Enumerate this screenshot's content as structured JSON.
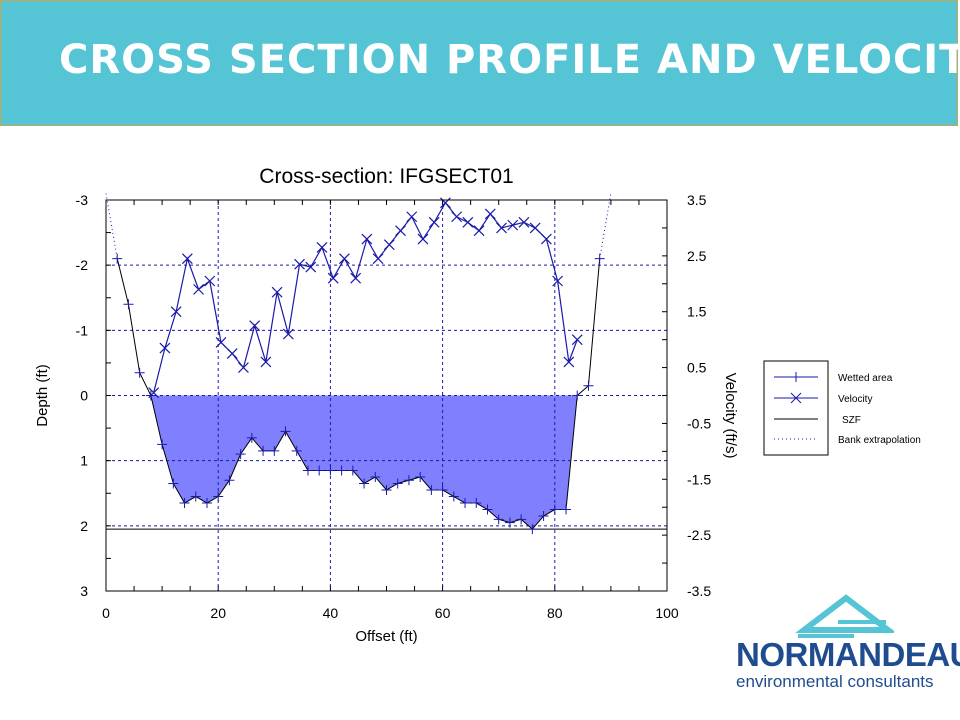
{
  "header": {
    "title": "CROSS SECTION PROFILE AND VELOCITY"
  },
  "logo": {
    "main": "NORMANDEAU",
    "sub": "environmental consultants"
  },
  "chart_data": {
    "type": "area",
    "title": "Cross-section: IFGSECT01",
    "xlabel": "Offset (ft)",
    "ylabel": "Depth (ft)",
    "y2label": "Velocity (ft/s)",
    "xlim": [
      0,
      100
    ],
    "ylim": [
      -3,
      3
    ],
    "y2lim": [
      -3.5,
      3.5
    ],
    "x_ticks": [
      "0",
      "20",
      "40",
      "60",
      "80",
      "100"
    ],
    "y_ticks": [
      "-3",
      "-2",
      "-1",
      "0",
      "1",
      "2",
      "3"
    ],
    "y2_ticks": [
      "3.5",
      "2.5",
      "1.5",
      "0.5",
      "-0.5",
      "-1.5",
      "-2.5",
      "-3.5"
    ],
    "szf_depth": 2.05,
    "legend": {
      "position": "right",
      "entries": [
        "Wetted area",
        "Velocity",
        "SZF",
        "Bank extrapolation"
      ]
    },
    "colors": {
      "wetted": "#8080ff",
      "series": "#1a1aaa",
      "grid": "#1a1aaa"
    },
    "bank_left": {
      "x": [
        0,
        2
      ],
      "depth": [
        -3.1,
        -2.1
      ]
    },
    "bank_right": {
      "x": [
        88,
        90
      ],
      "depth": [
        -2.1,
        -3.1
      ]
    },
    "profile": {
      "x": [
        2,
        4,
        6,
        8,
        10,
        12,
        14,
        16,
        18,
        20,
        22,
        24,
        26,
        28,
        30,
        32,
        34,
        36,
        38,
        40,
        42,
        44,
        46,
        48,
        50,
        52,
        54,
        56,
        58,
        60,
        62,
        64,
        66,
        68,
        70,
        72,
        74,
        76,
        78,
        80,
        82,
        84,
        86,
        88
      ],
      "depth": [
        -2.1,
        -1.4,
        -0.35,
        0,
        0.75,
        1.35,
        1.65,
        1.55,
        1.65,
        1.55,
        1.3,
        0.9,
        0.65,
        0.85,
        0.85,
        0.55,
        0.85,
        1.15,
        1.15,
        1.15,
        1.15,
        1.15,
        1.35,
        1.25,
        1.45,
        1.35,
        1.3,
        1.25,
        1.45,
        1.45,
        1.55,
        1.65,
        1.65,
        1.75,
        1.9,
        1.95,
        1.9,
        2.05,
        1.85,
        1.75,
        1.75,
        0,
        -0.15,
        -2.1
      ]
    },
    "velocity": {
      "x": [
        8.5,
        10.5,
        12.5,
        14.5,
        16.5,
        18.5,
        20.5,
        22.5,
        24.5,
        26.5,
        28.5,
        30.5,
        32.5,
        34.5,
        36.5,
        38.5,
        40.5,
        42.5,
        44.5,
        46.5,
        48.5,
        50.5,
        52.5,
        54.5,
        56.5,
        58.5,
        60.5,
        62.5,
        64.5,
        66.5,
        68.5,
        70.5,
        72.5,
        74.5,
        76.5,
        78.5,
        80.5,
        82.5,
        84.0
      ],
      "values": [
        0.05,
        0.85,
        1.5,
        2.45,
        1.9,
        2.05,
        0.95,
        0.75,
        0.5,
        1.25,
        0.6,
        1.85,
        1.1,
        2.35,
        2.3,
        2.65,
        2.1,
        2.45,
        2.1,
        2.8,
        2.45,
        2.7,
        2.95,
        3.2,
        2.8,
        3.1,
        3.45,
        3.2,
        3.1,
        2.95,
        3.25,
        3.0,
        3.05,
        3.1,
        3.0,
        2.8,
        2.05,
        0.6,
        1.0
      ]
    }
  }
}
